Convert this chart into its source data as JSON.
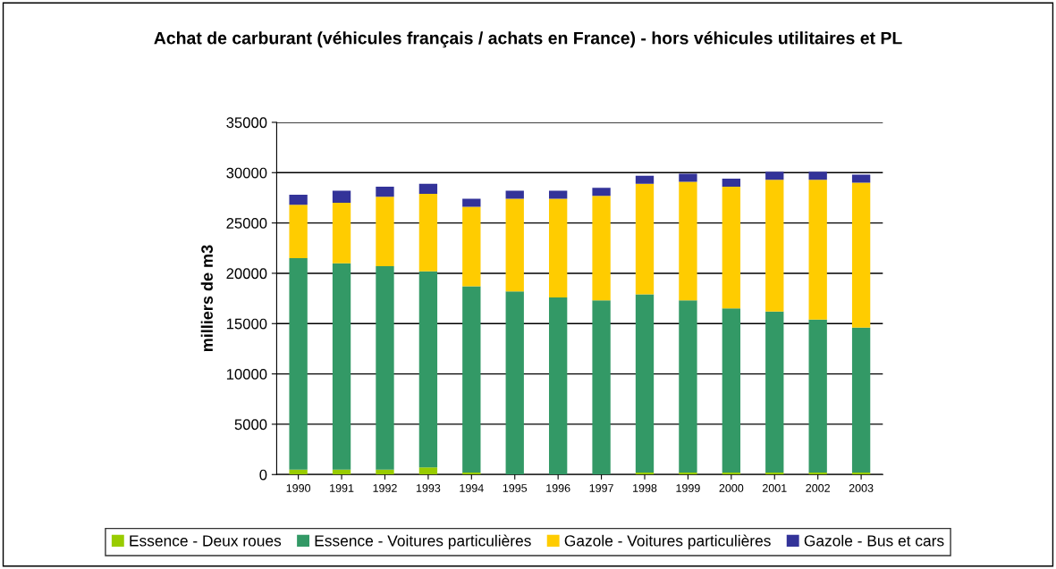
{
  "chart_data": {
    "type": "bar",
    "stacked": true,
    "title": "Achat de carburant (véhicules français / achats en France) - hors véhicules utilitaires et PL",
    "ylabel": "milliers de m3",
    "categories": [
      "1990",
      "1991",
      "1992",
      "1993",
      "1994",
      "1995",
      "1996",
      "1997",
      "1998",
      "1999",
      "2000",
      "2001",
      "2002",
      "2003"
    ],
    "series": [
      {
        "name": "Essence - Deux roues",
        "color": "#99cc00",
        "values": [
          500,
          500,
          500,
          700,
          200,
          null,
          null,
          null,
          200,
          200,
          200,
          200,
          200,
          200
        ]
      },
      {
        "name": "Essence - Voitures particulières",
        "color": "#339966",
        "values": [
          21000,
          20500,
          20200,
          19500,
          18500,
          18200,
          17600,
          17300,
          17700,
          17100,
          16300,
          16000,
          15200,
          14400
        ]
      },
      {
        "name": "Gazole - Voitures particulières",
        "color": "#ffcc00",
        "values": [
          5300,
          6000,
          6900,
          7700,
          7900,
          9200,
          9800,
          10400,
          11000,
          11800,
          12100,
          13100,
          13900,
          14400
        ]
      },
      {
        "name": "Gazole - Bus et cars",
        "color": "#333399",
        "values": [
          1000,
          1200,
          1000,
          1000,
          800,
          800,
          800,
          800,
          800,
          800,
          800,
          800,
          800,
          800
        ]
      }
    ],
    "ylim": [
      0,
      35000
    ],
    "yticks": [
      0,
      5000,
      10000,
      15000,
      20000,
      25000,
      30000,
      35000
    ],
    "grid": "y",
    "legend": "bottom"
  }
}
